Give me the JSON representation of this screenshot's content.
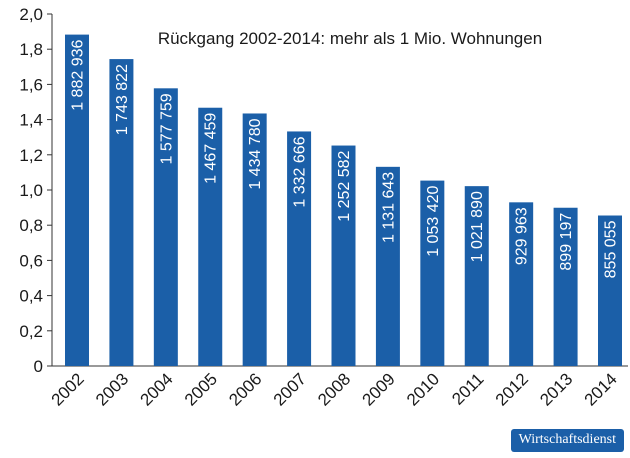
{
  "chart_data": {
    "type": "bar",
    "title": "Rückgang 2002-2014: mehr als 1 Mio. Wohnungen",
    "xlabel": "",
    "ylabel": "",
    "categories": [
      "2002",
      "2003",
      "2004",
      "2005",
      "2006",
      "2007",
      "2008",
      "2009",
      "2010",
      "2011",
      "2012",
      "2013",
      "2014"
    ],
    "values": [
      1.882936,
      1.743822,
      1.577759,
      1.467459,
      1.43478,
      1.332666,
      1.252582,
      1.131643,
      1.05342,
      1.02189,
      0.929963,
      0.899197,
      0.855055
    ],
    "data_labels": [
      "1 882 936",
      "1 743 822",
      "1 577 759",
      "1 467 459",
      "1 434 780",
      "1 332 666",
      "1 252 582",
      "1 131 643",
      "1 053 420",
      "1 021 890",
      "929 963",
      "899 197",
      "855 055"
    ],
    "ylim": [
      0,
      2.0
    ],
    "yticks": [
      0,
      0.2,
      0.4,
      0.6,
      0.8,
      1.0,
      1.2,
      1.4,
      1.6,
      1.8,
      2.0
    ],
    "ytick_labels": [
      "0",
      "0,2",
      "0,4",
      "0,6",
      "0,8",
      "1,0",
      "1,2",
      "1,4",
      "1,6",
      "1,8",
      "2,0"
    ],
    "grid": false,
    "bar_color": "#1b5fa8"
  },
  "brand": {
    "label": "Wirtschaftsdienst",
    "color": "#1b5fa8"
  }
}
